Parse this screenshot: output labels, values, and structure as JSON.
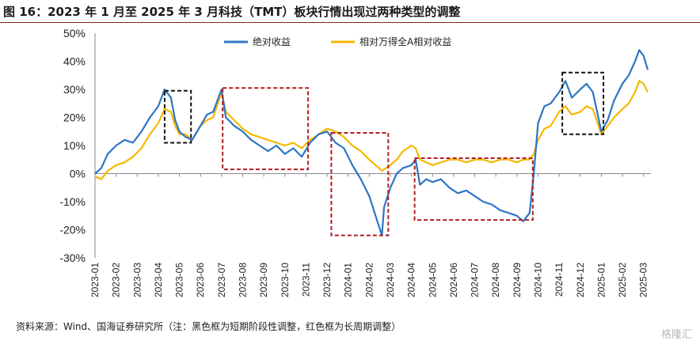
{
  "header": {
    "title": "图 16：2023 年 1 月至 2025 年 3 月科技（TMT）板块行情出现过两种类型的调整"
  },
  "footer": {
    "source": "资料来源：Wind、国海证券研究所（注：黑色框为短期阶段性调整，红色框为长周期调整）",
    "watermark": "格隆汇"
  },
  "chart_data": {
    "type": "line",
    "title": "",
    "xlabel": "",
    "ylabel": "",
    "ylim": [
      -30,
      50
    ],
    "y_ticks": [
      "50%",
      "40%",
      "30%",
      "20%",
      "10%",
      "0%",
      "-10%",
      "-20%",
      "-30%"
    ],
    "y_tick_values": [
      50,
      40,
      30,
      20,
      10,
      0,
      -10,
      -20,
      -30
    ],
    "x_labels": [
      "2023-01",
      "2023-02",
      "2023-03",
      "2023-04",
      "2023-05",
      "2023-06",
      "2023-07",
      "2023-08",
      "2023-09",
      "2023-10",
      "2023-11",
      "2023-12",
      "2024-01",
      "2024-02",
      "2024-03",
      "2024-04",
      "2024-05",
      "2024-06",
      "2024-07",
      "2024-08",
      "2024-09",
      "2024-10",
      "2024-11",
      "2024-12",
      "2025-01",
      "2025-02",
      "2025-03"
    ],
    "legend_position": "top",
    "series": [
      {
        "name": "绝对收益",
        "color": "#2e75c4",
        "points": [
          [
            0,
            0
          ],
          [
            0.3,
            2
          ],
          [
            0.6,
            7
          ],
          [
            1,
            10
          ],
          [
            1.4,
            12
          ],
          [
            1.8,
            11
          ],
          [
            2.2,
            15
          ],
          [
            2.6,
            20
          ],
          [
            3,
            24
          ],
          [
            3.3,
            30
          ],
          [
            3.6,
            27
          ],
          [
            3.8,
            19
          ],
          [
            4,
            15
          ],
          [
            4.3,
            13
          ],
          [
            4.6,
            12
          ],
          [
            5,
            17
          ],
          [
            5.3,
            21
          ],
          [
            5.6,
            22
          ],
          [
            6,
            30
          ],
          [
            6.2,
            20
          ],
          [
            6.6,
            17
          ],
          [
            7,
            15
          ],
          [
            7.4,
            12
          ],
          [
            7.8,
            10
          ],
          [
            8.2,
            8
          ],
          [
            8.6,
            10
          ],
          [
            9,
            7
          ],
          [
            9.4,
            9
          ],
          [
            9.8,
            6
          ],
          [
            10.2,
            11
          ],
          [
            10.6,
            14
          ],
          [
            11,
            15
          ],
          [
            11.4,
            11
          ],
          [
            11.8,
            9
          ],
          [
            12.2,
            3
          ],
          [
            12.6,
            -2
          ],
          [
            13,
            -8
          ],
          [
            13.3,
            -15
          ],
          [
            13.6,
            -22
          ],
          [
            13.7,
            -12
          ],
          [
            14,
            -5
          ],
          [
            14.3,
            0
          ],
          [
            14.6,
            2
          ],
          [
            15,
            3
          ],
          [
            15.2,
            5
          ],
          [
            15.4,
            -4
          ],
          [
            15.7,
            -2
          ],
          [
            16,
            -3
          ],
          [
            16.4,
            -2
          ],
          [
            16.8,
            -5
          ],
          [
            17.2,
            -7
          ],
          [
            17.6,
            -6
          ],
          [
            18,
            -8
          ],
          [
            18.4,
            -10
          ],
          [
            18.8,
            -11
          ],
          [
            19.2,
            -13
          ],
          [
            19.6,
            -14
          ],
          [
            20,
            -15
          ],
          [
            20.3,
            -17
          ],
          [
            20.6,
            -14
          ],
          [
            20.8,
            0
          ],
          [
            21,
            18
          ],
          [
            21.3,
            24
          ],
          [
            21.6,
            25
          ],
          [
            22,
            29
          ],
          [
            22.3,
            33
          ],
          [
            22.6,
            27
          ],
          [
            23,
            30
          ],
          [
            23.3,
            32
          ],
          [
            23.6,
            29
          ],
          [
            24,
            15
          ],
          [
            24.3,
            19
          ],
          [
            24.6,
            26
          ],
          [
            25,
            32
          ],
          [
            25.3,
            35
          ],
          [
            25.6,
            40
          ],
          [
            25.8,
            44
          ],
          [
            26,
            42
          ],
          [
            26.2,
            37
          ]
        ]
      },
      {
        "name": "相对万得全A相对收益",
        "color": "#f5b800",
        "points": [
          [
            0,
            -1
          ],
          [
            0.3,
            -2
          ],
          [
            0.6,
            1
          ],
          [
            1,
            3
          ],
          [
            1.4,
            4
          ],
          [
            1.8,
            6
          ],
          [
            2.2,
            9
          ],
          [
            2.6,
            14
          ],
          [
            3,
            18
          ],
          [
            3.3,
            23
          ],
          [
            3.6,
            22
          ],
          [
            3.8,
            17
          ],
          [
            4,
            14
          ],
          [
            4.3,
            14
          ],
          [
            4.6,
            12
          ],
          [
            5,
            17
          ],
          [
            5.3,
            19
          ],
          [
            5.6,
            20
          ],
          [
            6,
            29
          ],
          [
            6.2,
            22
          ],
          [
            6.6,
            19
          ],
          [
            7,
            16
          ],
          [
            7.4,
            14
          ],
          [
            7.8,
            13
          ],
          [
            8.2,
            12
          ],
          [
            8.6,
            11
          ],
          [
            9,
            10
          ],
          [
            9.4,
            11
          ],
          [
            9.8,
            9
          ],
          [
            10.2,
            12
          ],
          [
            10.6,
            14
          ],
          [
            11,
            16
          ],
          [
            11.4,
            15
          ],
          [
            11.8,
            13
          ],
          [
            12.2,
            10
          ],
          [
            12.6,
            8
          ],
          [
            13,
            5
          ],
          [
            13.3,
            3
          ],
          [
            13.6,
            1
          ],
          [
            14,
            3
          ],
          [
            14.3,
            5
          ],
          [
            14.6,
            8
          ],
          [
            15,
            10
          ],
          [
            15.2,
            9
          ],
          [
            15.4,
            5
          ],
          [
            15.7,
            4
          ],
          [
            16,
            3
          ],
          [
            16.4,
            4
          ],
          [
            16.8,
            5
          ],
          [
            17.2,
            5
          ],
          [
            17.6,
            4
          ],
          [
            18,
            5
          ],
          [
            18.4,
            5
          ],
          [
            18.8,
            4
          ],
          [
            19.2,
            5
          ],
          [
            19.6,
            5
          ],
          [
            20,
            4
          ],
          [
            20.3,
            5
          ],
          [
            20.6,
            5
          ],
          [
            20.8,
            7
          ],
          [
            21,
            12
          ],
          [
            21.3,
            16
          ],
          [
            21.6,
            17
          ],
          [
            22,
            22
          ],
          [
            22.3,
            24
          ],
          [
            22.6,
            21
          ],
          [
            23,
            22
          ],
          [
            23.3,
            24
          ],
          [
            23.6,
            23
          ],
          [
            24,
            14
          ],
          [
            24.3,
            17
          ],
          [
            24.6,
            20
          ],
          [
            25,
            23
          ],
          [
            25.3,
            25
          ],
          [
            25.6,
            29
          ],
          [
            25.8,
            33
          ],
          [
            26,
            32
          ],
          [
            26.2,
            29
          ]
        ]
      }
    ],
    "boxes": [
      {
        "style": "short",
        "color": "#111111",
        "x0": 3.3,
        "x1": 4.55,
        "y0": 29.5,
        "y1": 11
      },
      {
        "style": "long",
        "color": "#b01e23",
        "x0": 6.05,
        "x1": 10.1,
        "y0": 30.5,
        "y1": 1.5
      },
      {
        "style": "long",
        "color": "#b01e23",
        "x0": 11.2,
        "x1": 13.9,
        "y0": 14.5,
        "y1": -22
      },
      {
        "style": "long",
        "color": "#b01e23",
        "x0": 15.15,
        "x1": 20.75,
        "y0": 5.5,
        "y1": -16.5
      },
      {
        "style": "short",
        "color": "#111111",
        "x0": 22.15,
        "x1": 24.1,
        "y0": 36,
        "y1": 14
      }
    ]
  }
}
